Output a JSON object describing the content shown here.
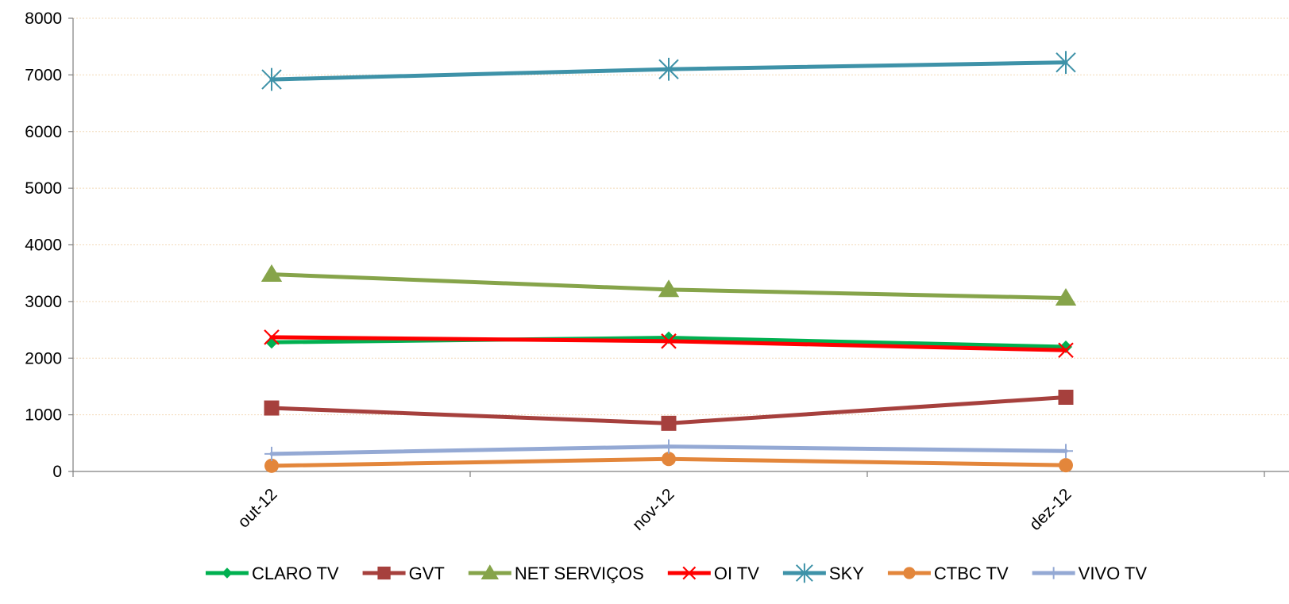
{
  "chart_data": {
    "type": "line",
    "title": "",
    "xlabel": "",
    "ylabel": "",
    "categories": [
      "out-12",
      "nov-12",
      "dez-12"
    ],
    "ylim": [
      0,
      8000
    ],
    "yticks": [
      0,
      1000,
      2000,
      3000,
      4000,
      5000,
      6000,
      7000,
      8000
    ],
    "grid": true,
    "legend_position": "bottom",
    "series": [
      {
        "name": "CLARO TV",
        "values": [
          2280,
          2360,
          2200
        ],
        "color": "#00b050",
        "marker": "diamond"
      },
      {
        "name": "GVT",
        "values": [
          1120,
          850,
          1310
        ],
        "color": "#a6403d",
        "marker": "square"
      },
      {
        "name": "NET SERVIÇOS",
        "values": [
          3480,
          3210,
          3060
        ],
        "color": "#86a44a",
        "marker": "triangle"
      },
      {
        "name": "OI TV",
        "values": [
          2370,
          2300,
          2140
        ],
        "color": "#ff0000",
        "marker": "x"
      },
      {
        "name": "SKY",
        "values": [
          6920,
          7100,
          7220
        ],
        "color": "#3e92a8",
        "marker": "star"
      },
      {
        "name": "CTBC TV",
        "values": [
          100,
          220,
          110
        ],
        "color": "#e3863b",
        "marker": "circle"
      },
      {
        "name": "VIVO TV",
        "values": [
          310,
          440,
          360
        ],
        "color": "#94a9d4",
        "marker": "plus"
      }
    ]
  }
}
